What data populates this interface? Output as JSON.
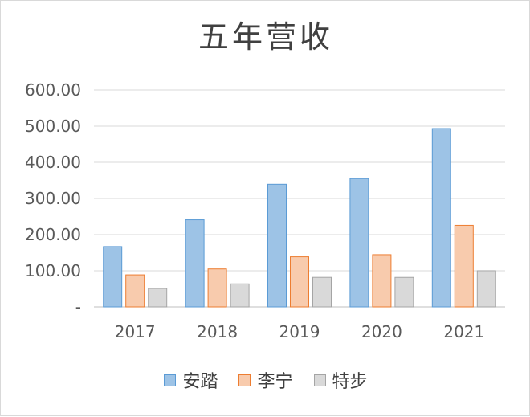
{
  "chart_data": {
    "type": "bar",
    "title": "五年营收",
    "categories": [
      "2017",
      "2018",
      "2019",
      "2020",
      "2021"
    ],
    "series": [
      {
        "name": "安踏",
        "values": [
          166.9,
          241.0,
          339.3,
          355.1,
          493.3
        ],
        "color": "#9dc3e6",
        "stroke": "#5b9bd5"
      },
      {
        "name": "李宁",
        "values": [
          88.7,
          105.1,
          138.7,
          144.6,
          225.7
        ],
        "color": "#f8cbad",
        "stroke": "#ed7d31"
      },
      {
        "name": "特步",
        "values": [
          51.1,
          63.8,
          81.8,
          81.7,
          100.1
        ],
        "color": "#d9d9d9",
        "stroke": "#a5a5a5"
      }
    ],
    "y_ticks": [
      "-",
      "100.00",
      "200.00",
      "300.00",
      "400.00",
      "500.00",
      "600.00"
    ],
    "ylim": [
      0,
      600
    ],
    "grid": true,
    "legend_position": "bottom"
  }
}
